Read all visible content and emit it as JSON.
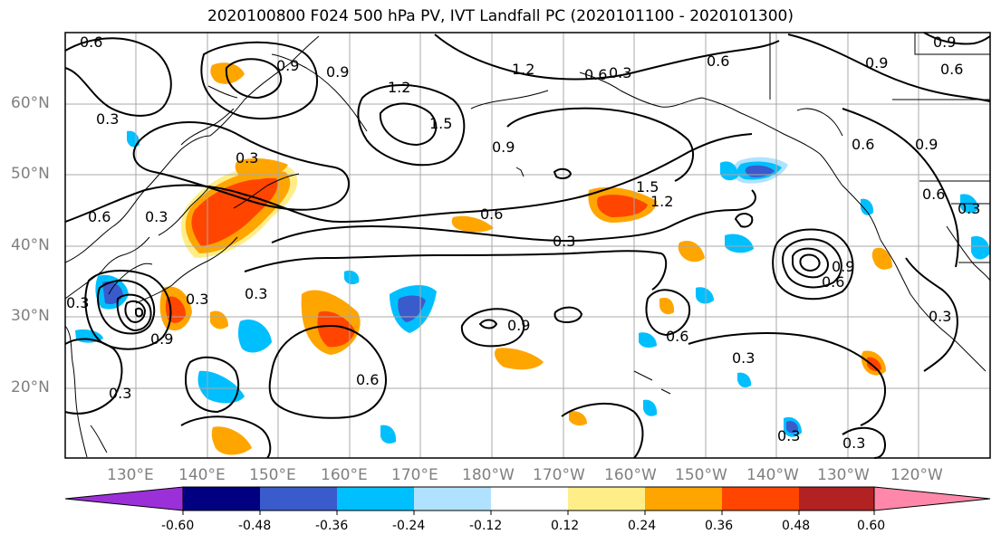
{
  "title": "2020100800 F024 500 hPa PV, IVT Landfall PC (2020101100 - 2020101300)",
  "lat_labels": [
    "60°N",
    "50°N",
    "40°N",
    "30°N",
    "20°N"
  ],
  "lon_labels": [
    "130°E",
    "140°E",
    "150°E",
    "160°E",
    "170°E",
    "180°W",
    "170°W",
    "160°W",
    "150°W",
    "140°W",
    "130°W",
    "120°W"
  ],
  "contour_labels": [
    "0.6",
    "0.3",
    "0.3",
    "0.6",
    "0.9",
    "0.9",
    "1.2",
    "1.5",
    "0.9",
    "0.3",
    "0.6",
    "0.3",
    "0.9",
    "0.6",
    "0.3",
    "0.3",
    "0.9",
    "0.6",
    "0.3",
    "0.3",
    "0.6",
    "0.3",
    "0.3",
    "0.6",
    "0.9",
    "1.5",
    "1.2",
    "0.6",
    "0.3",
    "0.6",
    "0.9",
    "1.2",
    "0.9",
    "0.6",
    "0.3",
    "0.3",
    "0.6",
    "0.3",
    "0.9"
  ],
  "colorbar": {
    "colors": [
      "#9b30d8",
      "#000080",
      "#3a5bcc",
      "#00bfff",
      "#b0e2ff",
      "#ffffff",
      "#ffee88",
      "#ffa500",
      "#ff4500",
      "#b22222",
      "#ff88aa"
    ],
    "tick_labels": [
      "-0.60",
      "-0.48",
      "-0.36",
      "-0.24",
      "-0.12",
      "0.12",
      "0.24",
      "0.36",
      "0.48",
      "0.60"
    ]
  },
  "fill_colors": {
    "light_yellow": "#ffee88",
    "orange": "#ffa500",
    "red_orange": "#ff4500",
    "light_blue": "#b0e2ff",
    "sky_blue": "#00bfff",
    "mid_blue": "#3a5bcc"
  }
}
